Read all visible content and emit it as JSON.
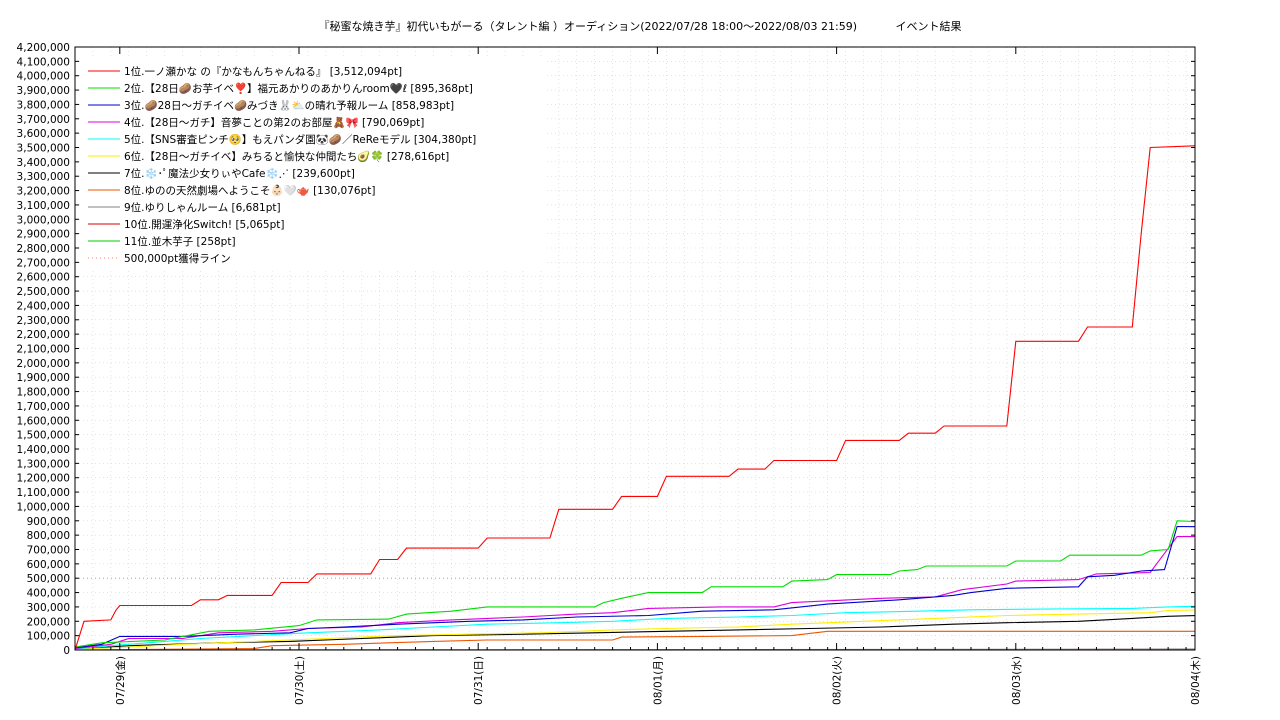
{
  "chart_data": {
    "type": "line",
    "title": "『秘蜜な焼き芋』初代いもがーる（タレント編 ）オーディション(2022/07/28 18:00～2022/08/03 21:59)",
    "subtitle": "イベント結果",
    "xlabel": "",
    "ylabel": "",
    "ylim": [
      0,
      4200000
    ],
    "xlim": [
      0,
      6.25
    ],
    "y_tick_labels": [
      "0",
      "100,000",
      "200,000",
      "300,000",
      "400,000",
      "500,000",
      "600,000",
      "700,000",
      "800,000",
      "900,000",
      "1,000,000",
      "1,100,000",
      "1,200,000",
      "1,300,000",
      "1,400,000",
      "1,500,000",
      "1,600,000",
      "1,700,000",
      "1,800,000",
      "1,900,000",
      "2,000,000",
      "2,100,000",
      "2,200,000",
      "2,300,000",
      "2,400,000",
      "2,500,000",
      "2,600,000",
      "2,700,000",
      "2,800,000",
      "2,900,000",
      "3,000,000",
      "3,100,000",
      "3,200,000",
      "3,300,000",
      "3,400,000",
      "3,500,000",
      "3,600,000",
      "3,700,000",
      "3,800,000",
      "3,900,000",
      "4,000,000",
      "4,100,000",
      "4,200,000"
    ],
    "x_tick_labels": [
      {
        "label": "07/29(金)",
        "x": 0.25
      },
      {
        "label": "07/30(土)",
        "x": 1.25
      },
      {
        "label": "07/31(日)",
        "x": 2.25
      },
      {
        "label": "08/01(月)",
        "x": 3.25
      },
      {
        "label": "08/02(火)",
        "x": 4.25
      },
      {
        "label": "08/03(水)",
        "x": 5.25
      },
      {
        "label": "08/04(木)",
        "x": 6.25
      }
    ],
    "grid": true,
    "legend_position": "top-left",
    "reference_line": {
      "name": "500,000pt獲得ライン",
      "value": 500000,
      "color": "#ff8080"
    },
    "series": [
      {
        "name": "1位.一ノ瀬かな の『かなもんちゃんねる』 [3,512,094pt]",
        "color": "#ff0000",
        "points": [
          [
            0,
            0
          ],
          [
            0.05,
            200000
          ],
          [
            0.2,
            210000
          ],
          [
            0.23,
            280000
          ],
          [
            0.25,
            310000
          ],
          [
            0.65,
            310000
          ],
          [
            0.7,
            350000
          ],
          [
            0.8,
            350000
          ],
          [
            0.85,
            380000
          ],
          [
            1.1,
            380000
          ],
          [
            1.15,
            470000
          ],
          [
            1.3,
            470000
          ],
          [
            1.35,
            530000
          ],
          [
            1.65,
            530000
          ],
          [
            1.7,
            630000
          ],
          [
            1.8,
            630000
          ],
          [
            1.85,
            710000
          ],
          [
            2.25,
            710000
          ],
          [
            2.3,
            780000
          ],
          [
            2.65,
            780000
          ],
          [
            2.7,
            980000
          ],
          [
            3.0,
            980000
          ],
          [
            3.05,
            1070000
          ],
          [
            3.25,
            1070000
          ],
          [
            3.3,
            1210000
          ],
          [
            3.65,
            1210000
          ],
          [
            3.7,
            1260000
          ],
          [
            3.85,
            1260000
          ],
          [
            3.9,
            1320000
          ],
          [
            4.25,
            1320000
          ],
          [
            4.3,
            1460000
          ],
          [
            4.6,
            1460000
          ],
          [
            4.65,
            1510000
          ],
          [
            4.8,
            1510000
          ],
          [
            4.85,
            1560000
          ],
          [
            5.2,
            1560000
          ],
          [
            5.25,
            2150000
          ],
          [
            5.6,
            2150000
          ],
          [
            5.65,
            2250000
          ],
          [
            5.9,
            2250000
          ],
          [
            5.95,
            2900000
          ],
          [
            6.0,
            3500000
          ],
          [
            6.25,
            3512094
          ]
        ]
      },
      {
        "name": "2位.【28日🥔お芋イベ❣️】福元あかりのあかりんroom🖤ℓ [895,368pt]",
        "color": "#00dd00",
        "points": [
          [
            0,
            20000
          ],
          [
            0.15,
            50000
          ],
          [
            0.5,
            70000
          ],
          [
            0.75,
            130000
          ],
          [
            1.0,
            140000
          ],
          [
            1.25,
            170000
          ],
          [
            1.35,
            210000
          ],
          [
            1.75,
            215000
          ],
          [
            1.85,
            250000
          ],
          [
            2.1,
            270000
          ],
          [
            2.3,
            300000
          ],
          [
            2.9,
            300000
          ],
          [
            2.95,
            330000
          ],
          [
            3.05,
            360000
          ],
          [
            3.2,
            400000
          ],
          [
            3.5,
            400000
          ],
          [
            3.55,
            440000
          ],
          [
            3.95,
            440000
          ],
          [
            4.0,
            480000
          ],
          [
            4.2,
            490000
          ],
          [
            4.25,
            525000
          ],
          [
            4.55,
            525000
          ],
          [
            4.6,
            550000
          ],
          [
            4.7,
            560000
          ],
          [
            4.75,
            585000
          ],
          [
            5.2,
            585000
          ],
          [
            5.25,
            620000
          ],
          [
            5.5,
            620000
          ],
          [
            5.55,
            660000
          ],
          [
            5.95,
            660000
          ],
          [
            6.0,
            690000
          ],
          [
            6.1,
            700000
          ],
          [
            6.15,
            900000
          ],
          [
            6.25,
            895368
          ]
        ]
      },
      {
        "name": "3位.🥔28日〜ガチイベ🥔みづき🐰⛅の晴れ予報ルーム [858,983pt]",
        "color": "#0000cc",
        "points": [
          [
            0,
            15000
          ],
          [
            0.15,
            40000
          ],
          [
            0.25,
            95000
          ],
          [
            0.6,
            95000
          ],
          [
            0.9,
            110000
          ],
          [
            1.2,
            120000
          ],
          [
            1.3,
            150000
          ],
          [
            1.5,
            160000
          ],
          [
            1.8,
            180000
          ],
          [
            2.2,
            200000
          ],
          [
            2.5,
            210000
          ],
          [
            2.8,
            230000
          ],
          [
            3.2,
            240000
          ],
          [
            3.5,
            270000
          ],
          [
            3.9,
            280000
          ],
          [
            4.2,
            320000
          ],
          [
            4.6,
            350000
          ],
          [
            4.9,
            380000
          ],
          [
            5.0,
            400000
          ],
          [
            5.2,
            430000
          ],
          [
            5.6,
            440000
          ],
          [
            5.65,
            510000
          ],
          [
            5.8,
            520000
          ],
          [
            5.95,
            550000
          ],
          [
            6.08,
            560000
          ],
          [
            6.15,
            860000
          ],
          [
            6.25,
            858983
          ]
        ]
      },
      {
        "name": "4位.【28日〜ガチ】音夢ことの第2のお部屋🧸🎀 [790,069pt]",
        "color": "#dd00dd",
        "points": [
          [
            0,
            10000
          ],
          [
            0.2,
            40000
          ],
          [
            0.3,
            80000
          ],
          [
            0.6,
            80000
          ],
          [
            0.8,
            120000
          ],
          [
            1.1,
            130000
          ],
          [
            1.3,
            150000
          ],
          [
            1.6,
            160000
          ],
          [
            1.8,
            190000
          ],
          [
            2.1,
            210000
          ],
          [
            2.5,
            230000
          ],
          [
            2.8,
            250000
          ],
          [
            3.0,
            260000
          ],
          [
            3.2,
            290000
          ],
          [
            3.6,
            300000
          ],
          [
            3.9,
            300000
          ],
          [
            4.0,
            330000
          ],
          [
            4.5,
            360000
          ],
          [
            4.8,
            370000
          ],
          [
            4.95,
            420000
          ],
          [
            5.2,
            460000
          ],
          [
            5.25,
            480000
          ],
          [
            5.6,
            490000
          ],
          [
            5.7,
            530000
          ],
          [
            6.0,
            540000
          ],
          [
            6.15,
            790000
          ],
          [
            6.25,
            790069
          ]
        ]
      },
      {
        "name": "5位.【SNS審査ピンチ🥺】もえパンダ園🐼🥔／ReReモデル [304,380pt]",
        "color": "#00ffff",
        "points": [
          [
            0,
            8000
          ],
          [
            0.2,
            30000
          ],
          [
            0.5,
            60000
          ],
          [
            0.7,
            80000
          ],
          [
            1.0,
            100000
          ],
          [
            1.3,
            120000
          ],
          [
            1.7,
            140000
          ],
          [
            2.0,
            160000
          ],
          [
            2.3,
            180000
          ],
          [
            2.7,
            190000
          ],
          [
            3.0,
            200000
          ],
          [
            3.3,
            220000
          ],
          [
            3.7,
            230000
          ],
          [
            4.0,
            240000
          ],
          [
            4.3,
            260000
          ],
          [
            4.7,
            270000
          ],
          [
            5.0,
            280000
          ],
          [
            5.4,
            285000
          ],
          [
            5.9,
            290000
          ],
          [
            6.1,
            300000
          ],
          [
            6.25,
            304380
          ]
        ]
      },
      {
        "name": "6位.【28日〜ガチイベ】みちると愉快な仲間たち🥑🍀 [278,616pt]",
        "color": "#ffee00",
        "points": [
          [
            0,
            5000
          ],
          [
            0.3,
            20000
          ],
          [
            0.6,
            40000
          ],
          [
            1.0,
            60000
          ],
          [
            1.4,
            80000
          ],
          [
            1.8,
            100000
          ],
          [
            2.2,
            110000
          ],
          [
            2.6,
            120000
          ],
          [
            3.0,
            140000
          ],
          [
            3.3,
            150000
          ],
          [
            3.7,
            160000
          ],
          [
            4.0,
            180000
          ],
          [
            4.4,
            200000
          ],
          [
            4.8,
            220000
          ],
          [
            5.2,
            240000
          ],
          [
            5.6,
            250000
          ],
          [
            6.0,
            260000
          ],
          [
            6.1,
            275000
          ],
          [
            6.25,
            278616
          ]
        ]
      },
      {
        "name": "7位.❄️･ﾟ魔法少女りぃやCafe❄️⋰ [239,600pt]",
        "color": "#000000",
        "points": [
          [
            0,
            5000
          ],
          [
            0.3,
            30000
          ],
          [
            0.8,
            50000
          ],
          [
            1.2,
            60000
          ],
          [
            1.6,
            80000
          ],
          [
            2.0,
            100000
          ],
          [
            2.5,
            110000
          ],
          [
            2.9,
            120000
          ],
          [
            3.3,
            130000
          ],
          [
            3.7,
            140000
          ],
          [
            4.1,
            150000
          ],
          [
            4.5,
            160000
          ],
          [
            4.9,
            180000
          ],
          [
            5.2,
            190000
          ],
          [
            5.6,
            200000
          ],
          [
            5.9,
            220000
          ],
          [
            6.1,
            235000
          ],
          [
            6.25,
            239600
          ]
        ]
      },
      {
        "name": "8位.ゆのの天然劇場へようこそ👶🏻🤍🫖 [130,076pt]",
        "color": "#ee5500",
        "points": [
          [
            0,
            0
          ],
          [
            0.5,
            5000
          ],
          [
            1.0,
            10000
          ],
          [
            1.1,
            30000
          ],
          [
            1.5,
            40000
          ],
          [
            2.0,
            60000
          ],
          [
            2.3,
            70000
          ],
          [
            3.0,
            70000
          ],
          [
            3.05,
            90000
          ],
          [
            3.5,
            95000
          ],
          [
            4.0,
            100000
          ],
          [
            4.2,
            130000
          ],
          [
            5.0,
            130000
          ],
          [
            6.25,
            130076
          ]
        ]
      },
      {
        "name": "9位.ゆりしゃんルーム [6,681pt]",
        "color": "#808080",
        "points": [
          [
            0,
            0
          ],
          [
            3.0,
            2000
          ],
          [
            5.5,
            5000
          ],
          [
            6.25,
            6681
          ]
        ]
      },
      {
        "name": "10位.開運浄化Switch! [5,065pt]",
        "color": "#dd0000",
        "points": [
          [
            0,
            0
          ],
          [
            4.0,
            1000
          ],
          [
            6.0,
            4000
          ],
          [
            6.25,
            5065
          ]
        ]
      },
      {
        "name": "11位.並木芋子 [258pt]",
        "color": "#00cc00",
        "points": [
          [
            0,
            0
          ],
          [
            3.0,
            100
          ],
          [
            6.25,
            258
          ]
        ]
      }
    ]
  }
}
